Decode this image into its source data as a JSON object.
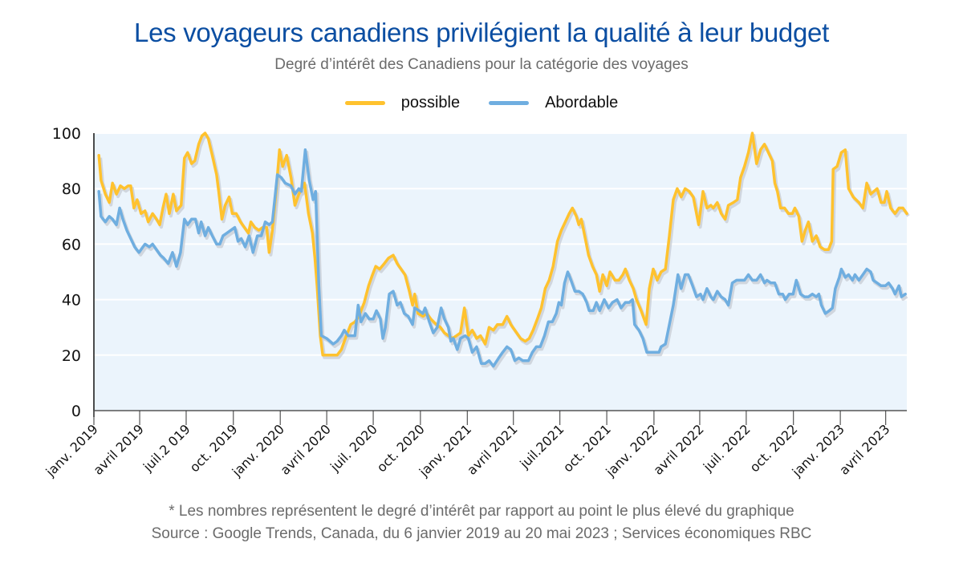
{
  "title": "Les voyageurs canadiens privilégient la qualité à leur budget",
  "subtitle": "Degré d’intérêt des Canadiens pour la catégorie des voyages",
  "footnote": {
    "line1": "* Les nombres représentent le degré d’intérêt par rapport au point le plus élevé du graphique",
    "line2": "Source : Google Trends, Canada, du 6 janvier 2019 au 20 mai 2023 ; Services économiques RBC"
  },
  "colors": {
    "title": "#0b4ea2",
    "possible": "#ffc22e",
    "abordable": "#6faee0",
    "plot_bg": "#ebf4fc",
    "shadow": "#c9ced6"
  },
  "chart_data": {
    "type": "line",
    "title": "Les voyageurs canadiens privilégient la qualité à leur budget",
    "subtitle": "Degré d’intérêt des Canadiens pour la catégorie des voyages",
    "xlabel": "",
    "ylabel": "",
    "x_unit": "weeks since 6 janvier 2019",
    "xlim": [
      -0.7,
      226.6
    ],
    "ylim": [
      0,
      100
    ],
    "yticks": [
      0,
      20,
      40,
      60,
      80,
      100
    ],
    "grid": true,
    "legend_position": "top-center",
    "xticks": [
      {
        "label": "janv. 2019",
        "x": -0.7
      },
      {
        "label": "avril 2019",
        "x": 12.1
      },
      {
        "label": "juil.2 019",
        "x": 25.1
      },
      {
        "label": "oct. 2019",
        "x": 38.3
      },
      {
        "label": "janv. 2020",
        "x": 51.4
      },
      {
        "label": "avril 2020",
        "x": 64.4
      },
      {
        "label": "juil. 2020",
        "x": 77.4
      },
      {
        "label": "oct. 2020",
        "x": 90.6
      },
      {
        "label": "janv. 2021",
        "x": 103.7
      },
      {
        "label": "avril 2021",
        "x": 116.6
      },
      {
        "label": "juil.2021",
        "x": 129.6
      },
      {
        "label": "oct. 2021",
        "x": 142.7
      },
      {
        "label": "janv. 2022",
        "x": 155.9
      },
      {
        "label": "avril 2022",
        "x": 168.7
      },
      {
        "label": "juil. 2022",
        "x": 181.7
      },
      {
        "label": "oct. 2022",
        "x": 194.9
      },
      {
        "label": "janv. 2023",
        "x": 208.0
      },
      {
        "label": "avril 2023",
        "x": 220.7
      }
    ],
    "series": [
      {
        "name": "possible",
        "color": "#ffc22e",
        "x": [
          0.7,
          1.3,
          2.5,
          3.6,
          4.5,
          5.6,
          6.7,
          7.8,
          8.9,
          9.6,
          10.5,
          11.4,
          12.5,
          13.6,
          14.5,
          15.7,
          16.8,
          17.7,
          18.6,
          19.5,
          20.4,
          21.5,
          22.4,
          23.7,
          24.6,
          25.5,
          26.6,
          27.5,
          28.6,
          29.5,
          30.4,
          31.3,
          32.4,
          33.6,
          34.2,
          35.1,
          36.0,
          37.1,
          38.0,
          39.1,
          40.3,
          41.4,
          42.5,
          43.2,
          44.3,
          45.4,
          46.5,
          47.6,
          48.3,
          49.2,
          50.3,
          51.2,
          52.1,
          53.2,
          54.4,
          55.5,
          56.6,
          58.2,
          59.3,
          60.4,
          61.1,
          61.7,
          62.6,
          63.3,
          64.4,
          66.0,
          67.3,
          68.5,
          69.6,
          71.1,
          72.3,
          73.4,
          74.9,
          76.1,
          77.2,
          78.1,
          79.2,
          80.5,
          81.7,
          83.0,
          84.1,
          85.2,
          86.3,
          87.5,
          88.4,
          89.0,
          89.9,
          91.3,
          92.4,
          93.5,
          95.1,
          96.2,
          97.3,
          98.4,
          99.5,
          100.7,
          101.8,
          102.9,
          104.0,
          105.1,
          106.3,
          107.4,
          108.7,
          109.8,
          111.0,
          112.1,
          113.6,
          114.8,
          115.9,
          117.0,
          118.6,
          119.9,
          121.0,
          122.1,
          123.3,
          124.4,
          125.5,
          126.6,
          127.7,
          128.9,
          130.0,
          131.1,
          132.2,
          133.1,
          134.2,
          134.9,
          135.6,
          136.7,
          137.6,
          138.7,
          139.8,
          140.7,
          141.6,
          142.7,
          143.6,
          145.0,
          146.1,
          147.2,
          147.9,
          149.0,
          150.1,
          151.0,
          152.3,
          153.7,
          154.6,
          155.7,
          156.8,
          157.9,
          159.1,
          160.2,
          161.3,
          162.4,
          163.5,
          164.6,
          165.8,
          166.9,
          168.4,
          169.6,
          170.7,
          171.8,
          172.5,
          173.6,
          174.7,
          175.8,
          176.7,
          178.1,
          179.2,
          180.1,
          181.2,
          182.3,
          183.4,
          184.6,
          185.7,
          186.8,
          187.9,
          189.0,
          189.7,
          190.4,
          191.3,
          192.4,
          193.5,
          194.6,
          195.3,
          196.4,
          197.3,
          198.2,
          199.1,
          200.2,
          201.3,
          202.4,
          203.6,
          204.7,
          205.6,
          206.0,
          207.1,
          208.3,
          209.4,
          210.3,
          211.6,
          213.2,
          214.3,
          215.4,
          216.5,
          218.3,
          219.4,
          220.3,
          221.0,
          222.1,
          223.3,
          224.4,
          225.5,
          226.6
        ],
        "values": [
          92,
          83,
          78,
          75,
          82,
          78,
          81,
          80,
          81,
          81,
          73,
          76,
          71,
          72,
          68,
          71,
          69,
          67,
          73,
          78,
          71,
          78,
          72,
          74,
          91,
          93,
          89,
          90,
          96,
          99,
          100,
          98,
          92,
          85,
          79,
          69,
          74,
          77,
          71,
          71,
          68,
          66,
          64,
          68,
          66,
          65,
          66,
          66,
          57,
          65,
          80,
          94,
          88,
          92,
          84,
          74,
          78,
          82,
          71,
          64,
          55,
          45,
          27,
          20,
          20,
          20,
          20,
          22,
          26,
          31,
          32,
          34,
          39,
          45,
          49,
          52,
          51,
          53,
          55,
          56,
          53,
          51,
          49,
          43,
          38,
          42,
          35,
          34,
          35,
          33,
          31,
          30,
          28,
          27,
          26,
          27,
          28,
          37,
          27,
          29,
          26,
          27,
          24,
          30,
          29,
          31,
          31,
          34,
          31,
          29,
          26,
          25,
          26,
          29,
          33,
          37,
          44,
          47,
          52,
          61,
          65,
          68,
          71,
          73,
          70,
          67,
          69,
          62,
          56,
          52,
          49,
          43,
          49,
          45,
          50,
          47,
          47,
          49,
          51,
          47,
          44,
          40,
          36,
          31,
          44,
          51,
          47,
          50,
          51,
          63,
          76,
          80,
          77,
          80,
          79,
          77,
          67,
          79,
          73,
          74,
          73,
          75,
          71,
          69,
          74,
          75,
          76,
          84,
          88,
          93,
          100,
          89,
          94,
          96,
          93,
          90,
          82,
          79,
          73,
          73,
          71,
          71,
          73,
          70,
          61,
          65,
          68,
          61,
          63,
          59,
          58,
          58,
          61,
          87,
          88,
          93,
          94,
          80,
          77,
          75,
          73,
          82,
          78,
          80,
          75,
          75,
          79,
          73,
          71,
          73,
          73,
          71
        ]
      },
      {
        "name": "Abordable",
        "color": "#6faee0",
        "x": [
          0.7,
          1.3,
          2.5,
          3.6,
          4.5,
          5.6,
          6.5,
          7.4,
          8.5,
          9.6,
          10.7,
          11.9,
          13.0,
          13.6,
          14.8,
          15.7,
          16.8,
          17.9,
          18.8,
          20.1,
          21.3,
          22.4,
          23.5,
          24.6,
          25.5,
          26.6,
          27.7,
          28.6,
          29.3,
          30.4,
          31.3,
          32.4,
          33.6,
          34.5,
          35.4,
          36.5,
          37.6,
          38.7,
          39.6,
          40.5,
          41.6,
          42.7,
          43.8,
          45.0,
          46.1,
          47.2,
          48.3,
          49.2,
          50.6,
          51.7,
          52.8,
          54.4,
          55.5,
          56.6,
          57.3,
          58.4,
          59.5,
          60.6,
          61.3,
          62.2,
          62.9,
          64.4,
          66.2,
          67.3,
          68.5,
          69.3,
          70.4,
          71.6,
          72.3,
          73.2,
          74.0,
          75.2,
          76.3,
          77.4,
          78.3,
          79.4,
          80.1,
          80.8,
          81.9,
          83.0,
          84.1,
          85.0,
          86.1,
          87.2,
          88.4,
          89.0,
          90.2,
          91.3,
          91.9,
          93.1,
          94.2,
          95.3,
          96.4,
          97.3,
          98.4,
          99.1,
          99.8,
          100.9,
          101.8,
          103.1,
          104.0,
          105.1,
          106.3,
          107.6,
          108.7,
          109.8,
          111.0,
          112.5,
          113.6,
          114.8,
          115.9,
          117.0,
          118.1,
          119.2,
          120.8,
          121.9,
          123.0,
          124.1,
          125.3,
          126.4,
          127.5,
          128.6,
          129.3,
          130.0,
          130.9,
          131.8,
          132.7,
          133.8,
          134.9,
          136.0,
          137.1,
          137.8,
          138.9,
          139.8,
          140.7,
          142.0,
          143.2,
          144.3,
          145.6,
          146.7,
          147.9,
          149.0,
          149.9,
          150.5,
          151.7,
          152.8,
          153.9,
          155.0,
          156.1,
          157.3,
          157.9,
          159.1,
          160.2,
          161.3,
          162.6,
          163.5,
          164.6,
          165.5,
          166.7,
          167.8,
          168.9,
          169.6,
          170.7,
          171.8,
          172.5,
          173.6,
          174.7,
          175.8,
          176.7,
          177.8,
          179.0,
          180.1,
          181.2,
          182.3,
          183.4,
          184.6,
          185.7,
          186.8,
          187.5,
          188.6,
          189.7,
          190.8,
          191.9,
          192.6,
          193.7,
          194.8,
          195.7,
          196.9,
          198.0,
          199.1,
          200.2,
          201.3,
          202.0,
          202.7,
          203.8,
          204.9,
          205.8,
          206.6,
          207.7,
          208.3,
          209.4,
          210.3,
          211.4,
          212.1,
          213.2,
          214.3,
          215.4,
          216.5,
          217.2,
          218.3,
          219.4,
          220.6,
          221.5,
          222.6,
          223.3,
          224.4,
          225.1,
          226.2
        ],
        "values": [
          79,
          70,
          68,
          70,
          69,
          67,
          73,
          69,
          65,
          62,
          59,
          57,
          59,
          60,
          59,
          60,
          58,
          56,
          55,
          53,
          57,
          52,
          57,
          69,
          67,
          69,
          69,
          64,
          68,
          63,
          66,
          63,
          60,
          60,
          63,
          64,
          65,
          66,
          61,
          62,
          59,
          63,
          57,
          63,
          63,
          68,
          67,
          68,
          85,
          84,
          82,
          81,
          78,
          80,
          79,
          94,
          83,
          76,
          79,
          45,
          27,
          26,
          24,
          25,
          27,
          29,
          27,
          27,
          27,
          38,
          32,
          35,
          33,
          33,
          36,
          33,
          26,
          30,
          42,
          43,
          38,
          39,
          35,
          34,
          31,
          37,
          36,
          35,
          37,
          32,
          28,
          30,
          37,
          33,
          30,
          25,
          26,
          22,
          26,
          27,
          26,
          21,
          23,
          17,
          17,
          18,
          16,
          19,
          21,
          23,
          22,
          18,
          19,
          18,
          18,
          21,
          23,
          23,
          27,
          32,
          32,
          35,
          39,
          38,
          46,
          50,
          47,
          43,
          43,
          42,
          39,
          36,
          36,
          39,
          36,
          40,
          37,
          39,
          40,
          37,
          39,
          39,
          40,
          31,
          29,
          26,
          21,
          21,
          21,
          21,
          23,
          24,
          31,
          38,
          49,
          44,
          49,
          49,
          45,
          41,
          42,
          40,
          44,
          41,
          40,
          43,
          41,
          40,
          38,
          46,
          47,
          47,
          47,
          49,
          47,
          47,
          49,
          46,
          47,
          46,
          46,
          42,
          42,
          40,
          42,
          42,
          47,
          42,
          41,
          41,
          42,
          41,
          42,
          38,
          35,
          36,
          37,
          44,
          48,
          51,
          48,
          49,
          47,
          49,
          47,
          49,
          51,
          50,
          47,
          46,
          45,
          45,
          46,
          44,
          42,
          45,
          41,
          42
        ]
      }
    ]
  }
}
